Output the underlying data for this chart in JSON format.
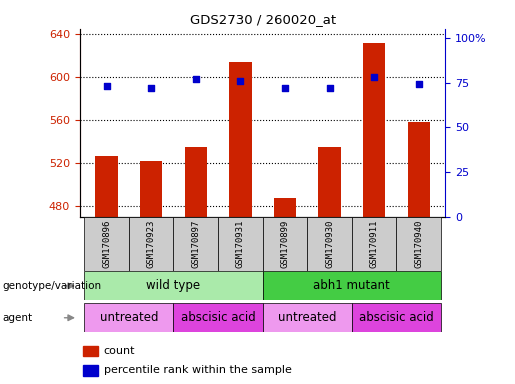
{
  "title": "GDS2730 / 260020_at",
  "samples": [
    "GSM170896",
    "GSM170923",
    "GSM170897",
    "GSM170931",
    "GSM170899",
    "GSM170930",
    "GSM170911",
    "GSM170940"
  ],
  "counts": [
    527,
    522,
    535,
    614,
    488,
    535,
    632,
    558
  ],
  "percentile_ranks": [
    73,
    72,
    77,
    76,
    72,
    72,
    78,
    74
  ],
  "ylim_left": [
    470,
    645
  ],
  "yticks_left": [
    480,
    520,
    560,
    600,
    640
  ],
  "ylim_right": [
    0,
    105
  ],
  "yticks_right": [
    0,
    25,
    50,
    75,
    100
  ],
  "yticklabels_right": [
    "0",
    "25",
    "50",
    "75",
    "100%"
  ],
  "bar_color": "#CC2200",
  "dot_color": "#0000CC",
  "bar_bottom": 470,
  "genotype_groups": [
    {
      "label": "wild type",
      "start": 0,
      "end": 4,
      "color": "#AAEAAA"
    },
    {
      "label": "abh1 mutant",
      "start": 4,
      "end": 8,
      "color": "#44CC44"
    }
  ],
  "agent_groups": [
    {
      "label": "untreated",
      "start": 0,
      "end": 2,
      "color": "#EE99EE"
    },
    {
      "label": "abscisic acid",
      "start": 2,
      "end": 4,
      "color": "#DD44DD"
    },
    {
      "label": "untreated",
      "start": 4,
      "end": 6,
      "color": "#EE99EE"
    },
    {
      "label": "abscisic acid",
      "start": 6,
      "end": 8,
      "color": "#DD44DD"
    }
  ],
  "left_axis_color": "#CC2200",
  "right_axis_color": "#0000CC",
  "legend_items": [
    {
      "label": "count",
      "color": "#CC2200"
    },
    {
      "label": "percentile rank within the sample",
      "color": "#0000CC"
    }
  ]
}
